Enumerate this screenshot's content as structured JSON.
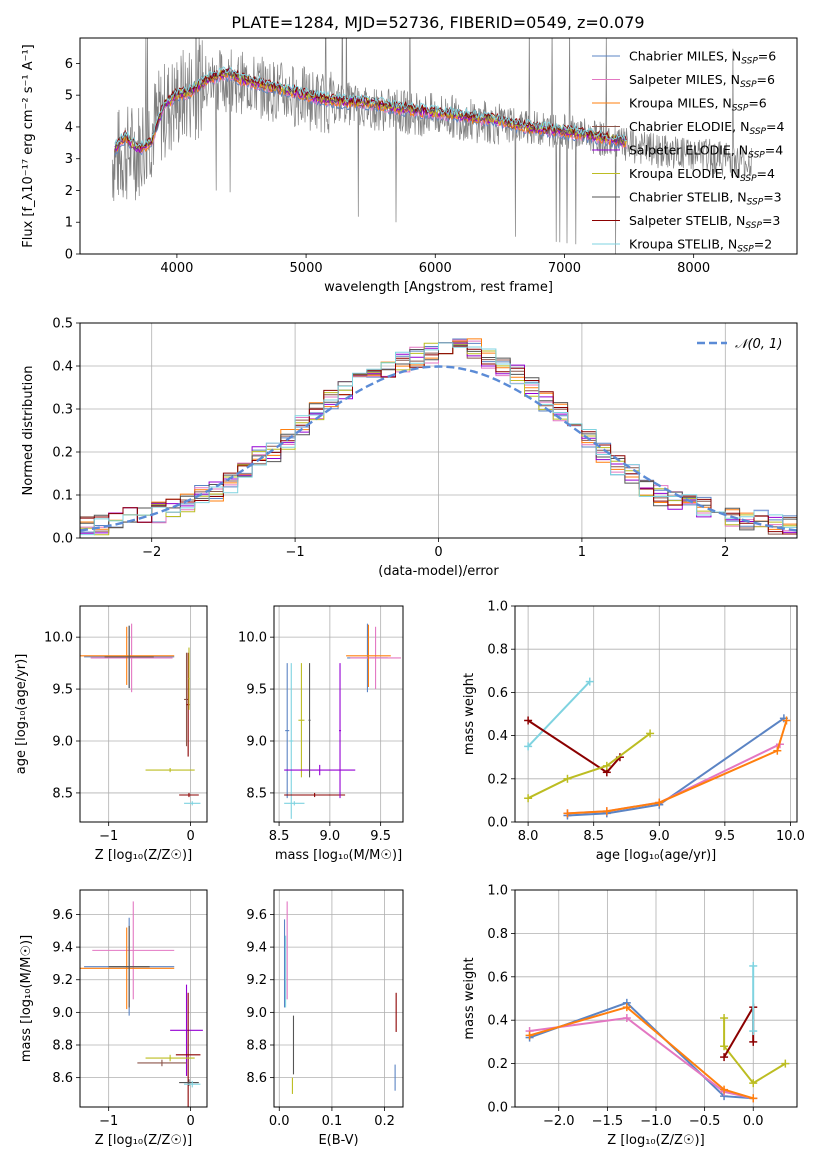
{
  "figure": {
    "title": "PLATE=1284, MJD=52736, FIBERID=0549, z=0.079"
  },
  "colors": {
    "chabrier_miles": "#5b84c4",
    "salpeter_miles": "#e377c2",
    "kroupa_miles": "#ff7f0e",
    "chabrier_elodie": "#8c564b",
    "salpeter_elodie": "#9400d3",
    "kroupa_elodie": "#bcbd22",
    "chabrier_stelib": "#555555",
    "salpeter_stelib": "#8b0000",
    "kroupa_stelib": "#7fd3e0",
    "data": "#808080",
    "normal": "#5b8bd6"
  },
  "chart_data": [
    {
      "id": "spectrum",
      "type": "line",
      "xlabel": "wavelength [Angstrom, rest frame]",
      "ylabel": "Flux [f_λ10⁻¹⁷ erg cm⁻² s⁻¹ A⁻¹]",
      "xlim": [
        3250,
        8800
      ],
      "ylim": [
        0,
        6.8
      ],
      "xticks": [
        "4000",
        "5000",
        "6000",
        "7000",
        "8000"
      ],
      "yticks": [
        "0",
        "1",
        "2",
        "3",
        "4",
        "5",
        "6"
      ],
      "legend": "top-right",
      "series": [
        {
          "name": "Chabrier MILES, N_SSP=6",
          "color_key": "chabrier_miles"
        },
        {
          "name": "Salpeter MILES, N_SSP=6",
          "color_key": "salpeter_miles"
        },
        {
          "name": "Kroupa MILES, N_SSP=6",
          "color_key": "kroupa_miles"
        },
        {
          "name": "Chabrier ELODIE, N_SSP=4",
          "color_key": "chabrier_elodie"
        },
        {
          "name": "Salpeter ELODIE, N_SSP=4",
          "color_key": "salpeter_elodie"
        },
        {
          "name": "Kroupa ELODIE, N_SSP=4",
          "color_key": "kroupa_elodie"
        },
        {
          "name": "Chabrier STELIB, N_SSP=3",
          "color_key": "chabrier_stelib"
        },
        {
          "name": "Salpeter STELIB, N_SSP=3",
          "color_key": "salpeter_stelib"
        },
        {
          "name": "Kroupa STELIB, N_SSP=2",
          "color_key": "kroupa_stelib"
        }
      ],
      "model_continuum": {
        "x": [
          3500,
          3600,
          3700,
          3800,
          3900,
          4000,
          4100,
          4200,
          4300,
          4400,
          4500,
          4700,
          4900,
          5100,
          5300,
          5500,
          5700,
          5900,
          6100,
          6300,
          6500,
          6700,
          6900,
          7100,
          7300,
          7500
        ],
        "y": [
          3.2,
          3.7,
          3.3,
          3.5,
          4.7,
          5.0,
          5.1,
          5.4,
          5.6,
          5.7,
          5.5,
          5.3,
          5.1,
          4.9,
          4.8,
          4.75,
          4.6,
          4.5,
          4.4,
          4.3,
          4.2,
          4.0,
          3.9,
          3.8,
          3.65,
          3.5
        ]
      },
      "data_continuum": {
        "x": [
          3500,
          3700,
          3900,
          4100,
          4300,
          4500,
          4700,
          4900,
          5100,
          5300,
          5500,
          5700,
          5900,
          6100,
          6300,
          6500,
          6700,
          6900,
          7100,
          7300,
          7500,
          7800,
          8100,
          8400
        ],
        "y": [
          3.0,
          3.3,
          4.5,
          5.1,
          5.5,
          5.4,
          5.2,
          5.0,
          4.8,
          4.75,
          4.6,
          4.5,
          4.4,
          4.35,
          4.2,
          4.1,
          4.0,
          3.9,
          3.8,
          3.6,
          3.4,
          3.2,
          3.1,
          2.9
        ]
      }
    },
    {
      "id": "residuals",
      "type": "line",
      "xlabel": "(data-model)/error",
      "ylabel": "Normed distribution",
      "xlim": [
        -2.5,
        2.5
      ],
      "ylim": [
        0,
        0.5
      ],
      "xticks": [
        "−2",
        "−1",
        "0",
        "1",
        "2"
      ],
      "yticks": [
        "0.0",
        "0.1",
        "0.2",
        "0.3",
        "0.4",
        "0.5"
      ],
      "grid": true,
      "legend": "top-right",
      "normal_label": "𝒩(0, 1)",
      "bin_width": 0.1,
      "hist_shape": [
        0.03,
        0.03,
        0.04,
        0.05,
        0.06,
        0.06,
        0.07,
        0.08,
        0.1,
        0.11,
        0.13,
        0.16,
        0.19,
        0.2,
        0.23,
        0.26,
        0.29,
        0.32,
        0.34,
        0.36,
        0.38,
        0.39,
        0.41,
        0.42,
        0.43,
        0.44,
        0.45,
        0.44,
        0.42,
        0.4,
        0.38,
        0.35,
        0.32,
        0.29,
        0.26,
        0.23,
        0.2,
        0.17,
        0.15,
        0.12,
        0.1,
        0.09,
        0.08,
        0.07,
        0.06,
        0.05,
        0.04,
        0.04,
        0.03,
        0.03
      ]
    },
    {
      "id": "age_vs_z",
      "type": "scatter",
      "xlabel": "Z [log₁₀(Z/Z☉)]",
      "ylabel": "age  [log₁₀(age/yr)]",
      "xlim": [
        -1.35,
        0.2
      ],
      "ylim": [
        8.22,
        10.3
      ],
      "xticks": [
        "−1",
        "0"
      ],
      "yticks": [
        "8.5",
        "9.0",
        "9.5",
        "10.0"
      ],
      "grid": true,
      "crosses": [
        {
          "x": -0.75,
          "y": 9.81,
          "xerr": 0.55,
          "yerr": 0.3,
          "color_key": "chabrier_miles"
        },
        {
          "x": -0.72,
          "y": 9.8,
          "xerr": 0.5,
          "yerr": 0.33,
          "color_key": "salpeter_miles"
        },
        {
          "x": -0.78,
          "y": 9.82,
          "xerr": 0.58,
          "yerr": 0.28,
          "color_key": "kroupa_miles"
        },
        {
          "x": -0.75,
          "y": 9.81,
          "xerr": 0.3,
          "yerr": 0.3,
          "color_key": "chabrier_stelib"
        },
        {
          "x": -0.05,
          "y": 9.4,
          "xerr": 0.03,
          "yerr": 0.45,
          "color_key": "chabrier_elodie"
        },
        {
          "x": -0.03,
          "y": 9.35,
          "xerr": 0.02,
          "yerr": 0.5,
          "color_key": "salpeter_stelib"
        },
        {
          "x": -0.25,
          "y": 8.72,
          "xerr": 0.3,
          "yerr": 0.02,
          "color_key": "kroupa_elodie"
        },
        {
          "x": -0.02,
          "y": 8.48,
          "xerr": 0.12,
          "yerr": 0.02,
          "color_key": "salpeter_stelib"
        },
        {
          "x": 0.02,
          "y": 8.4,
          "xerr": 0.1,
          "yerr": 0.02,
          "color_key": "kroupa_stelib"
        },
        {
          "x": -0.02,
          "y": 9.6,
          "xerr": 0.01,
          "yerr": 0.3,
          "color_key": "kroupa_elodie"
        }
      ]
    },
    {
      "id": "age_vs_mass",
      "type": "scatter",
      "xlabel": "mass [log₁₀(M/M☉)]",
      "ylabel": "",
      "xlim": [
        8.45,
        9.72
      ],
      "ylim": [
        8.22,
        10.3
      ],
      "xticks": [
        "8.5",
        "9.0",
        "9.5"
      ],
      "yticks": [
        "8.5",
        "9.0",
        "9.5",
        "10.0"
      ],
      "grid": true,
      "crosses": [
        {
          "x": 9.37,
          "y": 9.8,
          "xerr": 0.2,
          "yerr": 0.33,
          "color_key": "chabrier_miles"
        },
        {
          "x": 9.45,
          "y": 9.8,
          "xerr": 0.25,
          "yerr": 0.3,
          "color_key": "salpeter_miles"
        },
        {
          "x": 9.38,
          "y": 9.82,
          "xerr": 0.22,
          "yerr": 0.3,
          "color_key": "kroupa_miles"
        },
        {
          "x": 8.58,
          "y": 9.1,
          "xerr": 0.02,
          "yerr": 0.65,
          "color_key": "chabrier_miles"
        },
        {
          "x": 8.62,
          "y": 9.0,
          "xerr": 0.02,
          "yerr": 0.75,
          "color_key": "kroupa_stelib"
        },
        {
          "x": 8.72,
          "y": 9.2,
          "xerr": 0.03,
          "yerr": 0.55,
          "color_key": "kroupa_elodie"
        },
        {
          "x": 8.9,
          "y": 8.72,
          "xerr": 0.35,
          "yerr": 0.05,
          "color_key": "salpeter_elodie"
        },
        {
          "x": 8.85,
          "y": 8.48,
          "xerr": 0.3,
          "yerr": 0.02,
          "color_key": "salpeter_stelib"
        },
        {
          "x": 8.65,
          "y": 8.4,
          "xerr": 0.1,
          "yerr": 0.02,
          "color_key": "kroupa_stelib"
        },
        {
          "x": 8.8,
          "y": 9.2,
          "xerr": 0.01,
          "yerr": 0.55,
          "color_key": "chabrier_stelib"
        },
        {
          "x": 9.1,
          "y": 9.1,
          "xerr": 0.01,
          "yerr": 0.65,
          "color_key": "salpeter_elodie"
        }
      ]
    },
    {
      "id": "weight_vs_age",
      "type": "line",
      "xlabel": "age  [log₁₀(age/yr)]",
      "ylabel": "mass weight",
      "xlim": [
        7.9,
        10.05
      ],
      "ylim": [
        0,
        1
      ],
      "xticks": [
        "8.0",
        "8.5",
        "9.0",
        "9.5",
        "10.0"
      ],
      "yticks": [
        "0.0",
        "0.2",
        "0.4",
        "0.6",
        "0.8",
        "1.0"
      ],
      "grid": true,
      "series": [
        {
          "color_key": "kroupa_stelib",
          "x": [
            8.0,
            8.47
          ],
          "y": [
            0.35,
            0.65
          ]
        },
        {
          "color_key": "salpeter_stelib",
          "x": [
            8.0,
            8.6,
            8.7
          ],
          "y": [
            0.47,
            0.23,
            0.3
          ]
        },
        {
          "color_key": "kroupa_elodie",
          "x": [
            8.0,
            8.3,
            8.6,
            8.93
          ],
          "y": [
            0.11,
            0.2,
            0.26,
            0.41
          ]
        },
        {
          "color_key": "chabrier_miles",
          "x": [
            8.3,
            8.6,
            9.0,
            9.95
          ],
          "y": [
            0.03,
            0.04,
            0.08,
            0.48
          ]
        },
        {
          "color_key": "salpeter_miles",
          "x": [
            8.3,
            8.6,
            9.0,
            9.92
          ],
          "y": [
            0.04,
            0.05,
            0.09,
            0.36
          ]
        },
        {
          "color_key": "kroupa_miles",
          "x": [
            8.3,
            8.6,
            9.0,
            9.9,
            9.97
          ],
          "y": [
            0.04,
            0.05,
            0.09,
            0.33,
            0.47
          ]
        }
      ]
    },
    {
      "id": "mass_vs_z",
      "type": "scatter",
      "xlabel": "Z [log₁₀(Z/Z☉)]",
      "ylabel": "mass [log₁₀(M/M☉)]",
      "xlim": [
        -1.35,
        0.2
      ],
      "ylim": [
        8.42,
        9.75
      ],
      "xticks": [
        "−1",
        "0"
      ],
      "yticks": [
        "8.6",
        "8.8",
        "9.0",
        "9.2",
        "9.4",
        "9.6"
      ],
      "grid": true,
      "crosses": [
        {
          "x": -0.75,
          "y": 9.28,
          "xerr": 0.55,
          "yerr": 0.3,
          "color_key": "chabrier_miles"
        },
        {
          "x": -0.7,
          "y": 9.38,
          "xerr": 0.5,
          "yerr": 0.3,
          "color_key": "salpeter_miles"
        },
        {
          "x": -0.78,
          "y": 9.27,
          "xerr": 0.58,
          "yerr": 0.25,
          "color_key": "kroupa_miles"
        },
        {
          "x": -0.75,
          "y": 9.28,
          "xerr": 0.25,
          "yerr": 0.25,
          "color_key": "chabrier_stelib"
        },
        {
          "x": -0.05,
          "y": 8.89,
          "xerr": 0.2,
          "yerr": 0.28,
          "color_key": "salpeter_elodie"
        },
        {
          "x": -0.03,
          "y": 8.74,
          "xerr": 0.15,
          "yerr": 0.38,
          "color_key": "salpeter_stelib"
        },
        {
          "x": -0.25,
          "y": 8.72,
          "xerr": 0.3,
          "yerr": 0.02,
          "color_key": "kroupa_elodie"
        },
        {
          "x": -0.35,
          "y": 8.69,
          "xerr": 0.3,
          "yerr": 0.02,
          "color_key": "chabrier_elodie"
        },
        {
          "x": -0.02,
          "y": 8.57,
          "xerr": 0.12,
          "yerr": 0.02,
          "color_key": "chabrier_stelib"
        },
        {
          "x": 0.02,
          "y": 8.56,
          "xerr": 0.1,
          "yerr": 0.02,
          "color_key": "kroupa_stelib"
        }
      ]
    },
    {
      "id": "mass_vs_ebv",
      "type": "scatter",
      "xlabel": "E(B-V)",
      "ylabel": "",
      "xlim": [
        -0.01,
        0.235
      ],
      "ylim": [
        8.42,
        9.75
      ],
      "xticks": [
        "0.0",
        "0.1",
        "0.2"
      ],
      "yticks": [
        "8.6",
        "8.8",
        "9.0",
        "9.2",
        "9.4",
        "9.6"
      ],
      "grid": true,
      "crosses": [
        {
          "x": 0.01,
          "y": 9.3,
          "xerr": 0.0,
          "yerr": 0.27,
          "color_key": "chabrier_miles"
        },
        {
          "x": 0.015,
          "y": 9.38,
          "xerr": 0.0,
          "yerr": 0.3,
          "color_key": "salpeter_miles"
        },
        {
          "x": 0.012,
          "y": 9.25,
          "xerr": 0.0,
          "yerr": 0.22,
          "color_key": "kroupa_stelib"
        },
        {
          "x": 0.027,
          "y": 8.8,
          "xerr": 0.0,
          "yerr": 0.18,
          "color_key": "chabrier_stelib"
        },
        {
          "x": 0.025,
          "y": 8.55,
          "xerr": 0.0,
          "yerr": 0.05,
          "color_key": "kroupa_elodie"
        },
        {
          "x": 0.222,
          "y": 9.0,
          "xerr": 0.0,
          "yerr": 0.12,
          "color_key": "salpeter_stelib"
        },
        {
          "x": 0.22,
          "y": 8.6,
          "xerr": 0.0,
          "yerr": 0.08,
          "color_key": "chabrier_miles"
        }
      ]
    },
    {
      "id": "weight_vs_z",
      "type": "line",
      "xlabel": "Z [log₁₀(Z/Z☉)]",
      "ylabel": "mass weight",
      "xlim": [
        -2.45,
        0.45
      ],
      "ylim": [
        0,
        1
      ],
      "xticks": [
        "−2.0",
        "−1.5",
        "−1.0",
        "−0.5",
        "0.0"
      ],
      "yticks": [
        "0.0",
        "0.2",
        "0.4",
        "0.6",
        "0.8",
        "1.0"
      ],
      "grid": true,
      "series": [
        {
          "color_key": "chabrier_miles",
          "x": [
            -2.3,
            -1.3,
            -0.3,
            0.0
          ],
          "y": [
            0.32,
            0.48,
            0.05,
            0.04
          ]
        },
        {
          "color_key": "salpeter_miles",
          "x": [
            -2.3,
            -1.3,
            -0.3,
            0.0
          ],
          "y": [
            0.35,
            0.41,
            0.07,
            0.04
          ]
        },
        {
          "color_key": "kroupa_miles",
          "x": [
            -2.3,
            -1.3,
            -0.3,
            0.0
          ],
          "y": [
            0.33,
            0.46,
            0.08,
            0.04
          ]
        },
        {
          "color_key": "kroupa_elodie",
          "x": [
            -0.3,
            -0.3,
            0.0,
            0.33
          ],
          "y": [
            0.41,
            0.28,
            0.11,
            0.2
          ]
        },
        {
          "color_key": "salpeter_stelib",
          "x": [
            -0.3,
            0.0,
            0.0
          ],
          "y": [
            0.23,
            0.46,
            0.3
          ]
        },
        {
          "color_key": "kroupa_stelib",
          "x": [
            0.0,
            0.0
          ],
          "y": [
            0.65,
            0.35
          ]
        }
      ]
    }
  ]
}
